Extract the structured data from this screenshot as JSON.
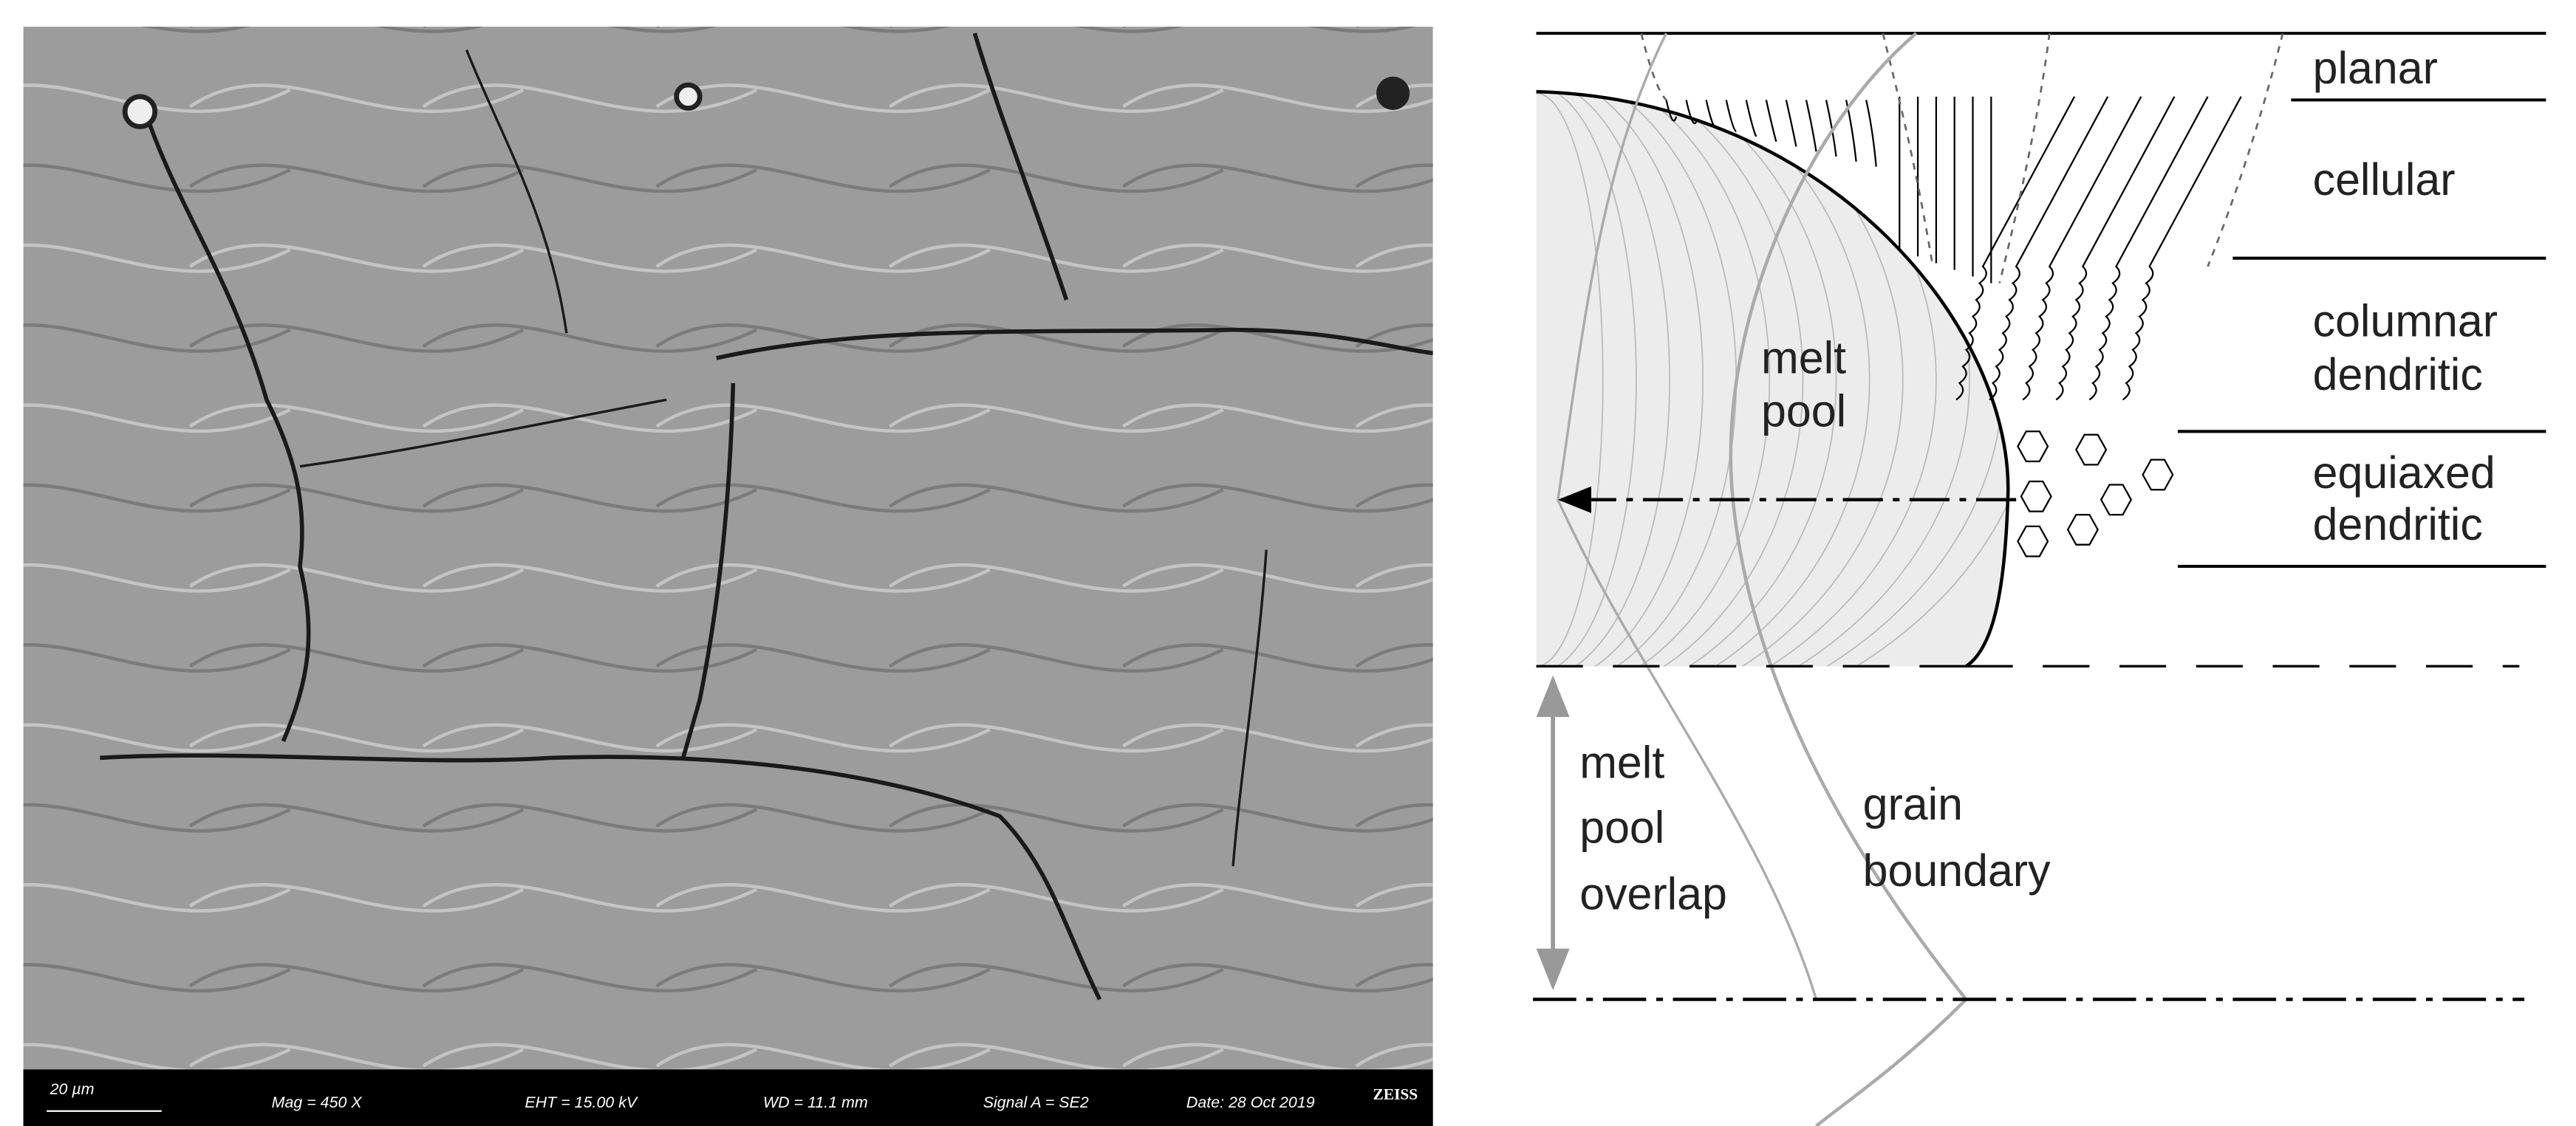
{
  "sem_image": {
    "scale_bar": "20 µm",
    "magnification": "Mag =   450 X",
    "eht": "EHT = 15.00 kV",
    "wd": "WD = 11.1 mm",
    "signal": "Signal A = SE2",
    "date": "Date: 28 Oct 2019",
    "brand": "ZEISS"
  },
  "diagram": {
    "zones": {
      "planar": "planar",
      "cellular": "cellular",
      "columnar_dendritic": [
        "columnar",
        "dendritic"
      ],
      "equiaxed_dendritic": [
        "equiaxed",
        "dendritic"
      ]
    },
    "melt_pool": [
      "melt",
      "pool"
    ],
    "melt_pool_overlap": [
      "melt",
      "pool",
      "overlap"
    ],
    "grain_boundary": [
      "grain",
      "boundary"
    ]
  }
}
